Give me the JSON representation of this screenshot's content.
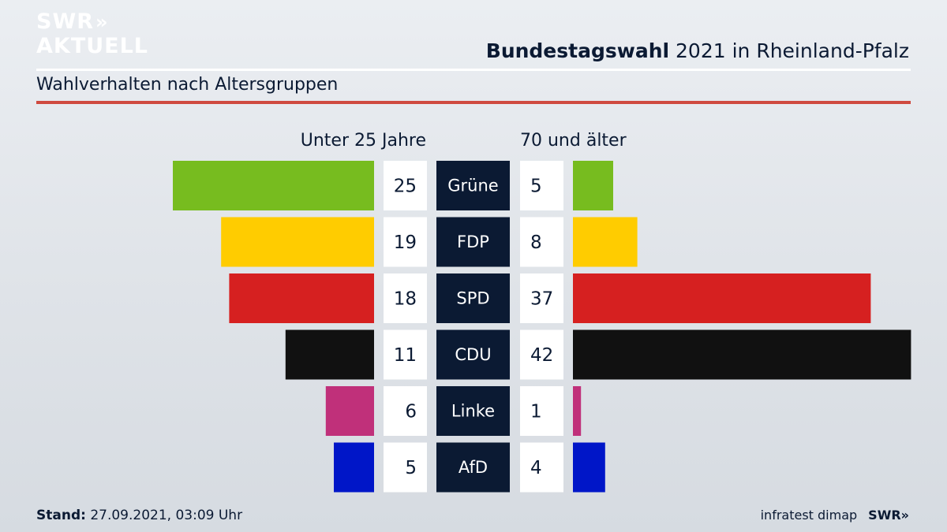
{
  "brand": {
    "logo_line1": "SWR",
    "logo_line2": "AKTUELL",
    "logo_chevrons": "»"
  },
  "header": {
    "title_bold": "Bundestagswahl",
    "title_rest": "2021 in Rheinland-Pfalz",
    "subtitle": "Wahlverhalten nach Altersgruppen"
  },
  "footer": {
    "stand_label": "Stand:",
    "stand_value": "27.09.2021, 03:09 Uhr",
    "source": "infratest dimap",
    "source_logo": "SWR»"
  },
  "chart_data": {
    "type": "bar",
    "title": "Wahlverhalten nach Altersgruppen",
    "left_label": "Unter 25 Jahre",
    "right_label": "70 und älter",
    "categories": [
      "Grüne",
      "FDP",
      "SPD",
      "CDU",
      "Linke",
      "AfD"
    ],
    "colors": [
      "#77bc1f",
      "#ffcc00",
      "#d62020",
      "#111111",
      "#c0307a",
      "#0016c8"
    ],
    "series": [
      {
        "name": "Unter 25 Jahre",
        "values": [
          25,
          19,
          18,
          11,
          6,
          5
        ]
      },
      {
        "name": "70 und älter",
        "values": [
          5,
          8,
          37,
          42,
          1,
          4
        ]
      }
    ],
    "xlim": [
      0,
      42
    ]
  }
}
